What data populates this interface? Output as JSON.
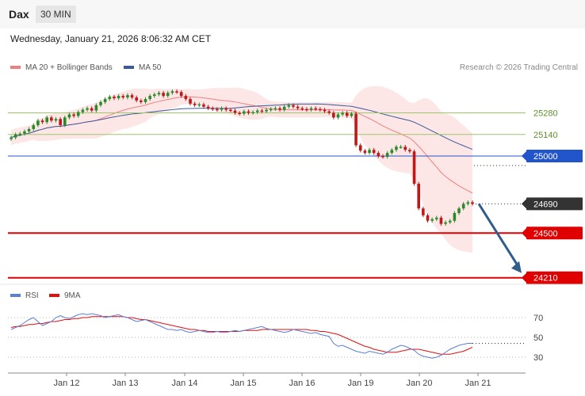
{
  "header": {
    "ticker": "Dax",
    "timeframe": "30 MIN",
    "datetime": "Wednesday, January 21, 2026 8:06:32 AM CET"
  },
  "legend": {
    "ma20_label": "MA 20 + Bollinger Bands",
    "ma20_color": "#f08080",
    "ma50_label": "MA 50",
    "ma50_color": "#3a5a9a",
    "credit": "Research © 2026 Trading Central"
  },
  "rsi_legend": {
    "rsi_label": "RSI",
    "rsi_color": "#5b7fd6",
    "ma_label": "9MA",
    "ma_color": "#e01010"
  },
  "colors": {
    "up": "#2a8a2a",
    "down": "#c01818",
    "band": "#fde2e2",
    "support": "#e00000",
    "pivot": "#2255cc",
    "resistance": "#9dc66b",
    "last": "#333333",
    "arrow": "#2f5d8c"
  },
  "chart_data": [
    {
      "type": "candlestick",
      "ylim": [
        24150,
        25450
      ],
      "x_ticks": [
        "Jan 12",
        "Jan 13",
        "Jan 14",
        "Jan 15",
        "Jan 16",
        "Jan 19",
        "Jan 20",
        "Jan 21"
      ],
      "levels": [
        {
          "label": "25280",
          "value": 25280,
          "kind": "resistance"
        },
        {
          "label": "25140",
          "value": 25140,
          "kind": "resistance"
        },
        {
          "label": "25000",
          "value": 25000,
          "kind": "pivot"
        },
        {
          "label": "24690",
          "value": 24690,
          "kind": "last"
        },
        {
          "label": "24500",
          "value": 24500,
          "kind": "support"
        },
        {
          "label": "24210",
          "value": 24210,
          "kind": "support"
        }
      ],
      "closes": [
        25120,
        25140,
        25145,
        25160,
        25175,
        25200,
        25230,
        25220,
        25250,
        25230,
        25240,
        25200,
        25250,
        25270,
        25260,
        25285,
        25300,
        25310,
        25295,
        25330,
        25350,
        25370,
        25385,
        25375,
        25390,
        25380,
        25395,
        25380,
        25360,
        25350,
        25370,
        25390,
        25400,
        25410,
        25390,
        25410,
        25420,
        25415,
        25390,
        25370,
        25340,
        25330,
        25335,
        25320,
        25310,
        25305,
        25300,
        25310,
        25300,
        25295,
        25280,
        25275,
        25290,
        25280,
        25285,
        25295,
        25290,
        25300,
        25305,
        25310,
        25300,
        25320,
        25330,
        25320,
        25310,
        25305,
        25300,
        25310,
        25305,
        25300,
        25290,
        25280,
        25250,
        25270,
        25280,
        25260,
        25275,
        25070,
        25035,
        25020,
        25040,
        25020,
        25000,
        24995,
        25020,
        25040,
        25060,
        25060,
        25040,
        25030,
        24820,
        24660,
        24615,
        24580,
        24590,
        24600,
        24560,
        24570,
        24580,
        24630,
        24660,
        24690,
        24700,
        24690
      ],
      "annotation": "projected move to 24210"
    },
    {
      "type": "line",
      "name": "RSI",
      "ylim": [
        20,
        85
      ],
      "y_ticks": [
        30,
        50,
        70
      ],
      "overbought": 70,
      "oversold": 30,
      "rsi": [
        58,
        60,
        62,
        65,
        68,
        70,
        66,
        62,
        64,
        66,
        70,
        72,
        70,
        69,
        71,
        73,
        74,
        73,
        74,
        73,
        72,
        70,
        71,
        72,
        73,
        71,
        70,
        68,
        66,
        67,
        68,
        66,
        64,
        62,
        60,
        58,
        58,
        57,
        58,
        56,
        55,
        56,
        57,
        56,
        55,
        55,
        56,
        55,
        55,
        56,
        57,
        56,
        57,
        58,
        59,
        60,
        61,
        59,
        58,
        57,
        56,
        55,
        56,
        58,
        57,
        56,
        55,
        54,
        55,
        53,
        52,
        51,
        44,
        41,
        42,
        40,
        38,
        36,
        35,
        34,
        36,
        35,
        34,
        33,
        35,
        38,
        40,
        42,
        41,
        39,
        37,
        33,
        31,
        30,
        29,
        30,
        32,
        35,
        38,
        40,
        42,
        43,
        44,
        44
      ],
      "ma9": [
        60,
        61,
        61,
        62,
        63,
        63,
        64,
        64,
        65,
        66,
        66,
        67,
        68,
        68,
        69,
        69,
        70,
        70,
        71,
        71,
        71,
        71,
        71,
        71,
        71,
        71,
        70,
        70,
        69,
        68,
        68,
        67,
        66,
        65,
        64,
        63,
        62,
        61,
        60,
        59,
        58,
        58,
        57,
        57,
        56,
        56,
        56,
        56,
        56,
        56,
        56,
        56,
        57,
        57,
        57,
        57,
        58,
        58,
        58,
        58,
        58,
        58,
        58,
        58,
        58,
        58,
        58,
        57,
        57,
        56,
        56,
        55,
        54,
        53,
        51,
        49,
        47,
        45,
        43,
        41,
        40,
        38,
        37,
        36,
        35,
        35,
        35,
        36,
        37,
        38,
        38,
        38,
        37,
        36,
        35,
        34,
        33,
        33,
        33,
        34,
        35,
        36,
        38,
        40
      ]
    }
  ]
}
